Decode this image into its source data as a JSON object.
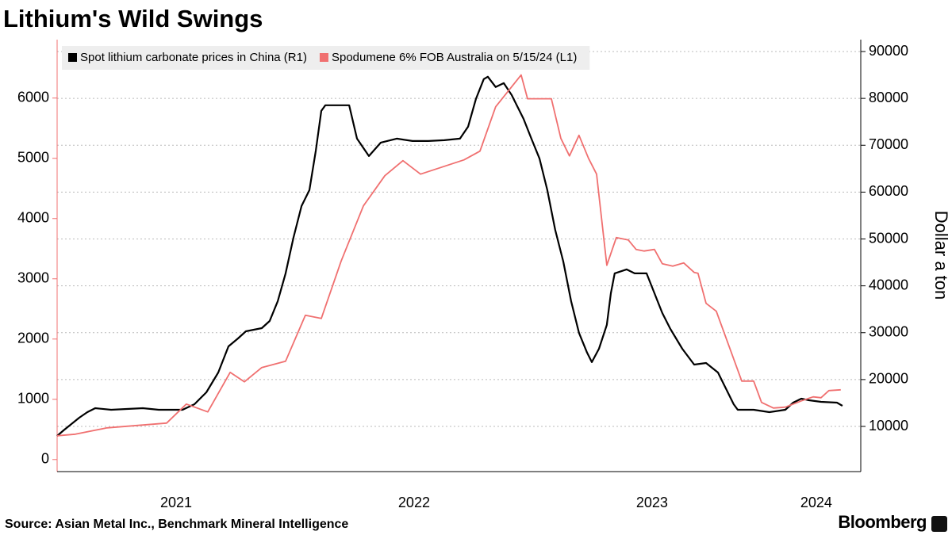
{
  "chart_data": {
    "type": "line",
    "title": "Lithium's Wild Swings",
    "source": "Source: Asian Metal Inc., Benchmark Mineral Intelligence",
    "brand": "Bloomberg",
    "y2_label": "Dollar a ton",
    "xlim": [
      2021,
      2024.377
    ],
    "xticks": [
      {
        "value": 2021.5,
        "label": "2021"
      },
      {
        "value": 2022.5,
        "label": "2022"
      },
      {
        "value": 2023.5,
        "label": "2023"
      },
      {
        "value": 2024.19,
        "label": "2024"
      }
    ],
    "ylim": [
      -200,
      6970
    ],
    "yticks": [
      0,
      1000,
      2000,
      3000,
      4000,
      5000,
      6000
    ],
    "y2lim": [
      360,
      92540
    ],
    "y2ticks": [
      10000,
      20000,
      30000,
      40000,
      50000,
      60000,
      70000,
      80000,
      90000
    ],
    "grid": true,
    "legend": "top-left",
    "series": [
      {
        "name": "Spot lithium carbonate prices in China (R1)",
        "color": "#000000",
        "axis": "y2",
        "x": [
          2021.0,
          2021.027,
          2021.06,
          2021.093,
          2021.127,
          2021.16,
          2021.227,
          2021.293,
          2021.36,
          2021.427,
          2021.527,
          2021.577,
          2021.627,
          2021.677,
          2021.72,
          2021.76,
          2021.793,
          2021.86,
          2021.893,
          2021.927,
          2021.96,
          2021.993,
          2022.027,
          2022.06,
          2022.087,
          2022.11,
          2022.127,
          2022.227,
          2022.26,
          2022.31,
          2022.36,
          2022.427,
          2022.493,
          2022.56,
          2022.627,
          2022.693,
          2022.727,
          2022.76,
          2022.793,
          2022.81,
          2022.843,
          2022.877,
          2022.91,
          2022.96,
          2022.993,
          2023.027,
          2023.06,
          2023.093,
          2023.127,
          2023.16,
          2023.193,
          2023.227,
          2023.247,
          2023.277,
          2023.31,
          2023.327,
          2023.343,
          2023.393,
          2023.427,
          2023.477,
          2023.51,
          2023.543,
          2023.577,
          2023.627,
          2023.677,
          2023.727,
          2023.777,
          2023.81,
          2023.843,
          2023.86,
          2023.927,
          2023.993,
          2024.06,
          2024.093,
          2024.127,
          2024.16,
          2024.21,
          2024.277,
          2024.3
        ],
        "values": [
          7970,
          9150,
          10510,
          11860,
          13050,
          13890,
          13550,
          13720,
          13890,
          13550,
          13550,
          14740,
          17280,
          21510,
          27090,
          28780,
          30300,
          30980,
          32500,
          36730,
          42660,
          50270,
          57040,
          60420,
          68880,
          77340,
          78530,
          78530,
          71420,
          67700,
          70570,
          71420,
          70900,
          70900,
          71080,
          71420,
          73960,
          79880,
          84110,
          84620,
          82420,
          83260,
          80730,
          75650,
          71420,
          67190,
          60420,
          51960,
          45190,
          36730,
          29970,
          25740,
          23710,
          26580,
          31660,
          38430,
          42660,
          43500,
          42660,
          42660,
          38430,
          34200,
          30810,
          26580,
          23200,
          23540,
          21510,
          18120,
          14740,
          13550,
          13550,
          13050,
          13550,
          15080,
          15920,
          15580,
          15250,
          15080,
          14400
        ]
      },
      {
        "name": "Spodumene 6% FOB Australia on 5/15/24 (L1)",
        "color": "#f07070",
        "axis": "y",
        "x": [
          2021.0,
          2021.077,
          2021.21,
          2021.46,
          2021.543,
          2021.633,
          2021.727,
          2021.787,
          2021.86,
          2021.96,
          2022.043,
          2022.11,
          2022.193,
          2022.287,
          2022.377,
          2022.453,
          2022.527,
          2022.71,
          2022.777,
          2022.843,
          2022.95,
          2022.977,
          2023.077,
          2023.117,
          2023.153,
          2023.193,
          2023.233,
          2023.267,
          2023.31,
          2023.35,
          2023.4,
          2023.433,
          2023.467,
          2023.51,
          2023.543,
          2023.587,
          2023.633,
          2023.677,
          2023.693,
          2023.727,
          2023.77,
          2023.877,
          2023.927,
          2023.96,
          2024.01,
          2024.06,
          2024.127,
          2024.177,
          2024.21,
          2024.243,
          2024.293
        ],
        "values": [
          395,
          421,
          526,
          605,
          921,
          790,
          1447,
          1290,
          1527,
          1632,
          2395,
          2342,
          3290,
          4211,
          4711,
          4961,
          4738,
          4974,
          5119,
          5856,
          6383,
          5988,
          5988,
          5330,
          5040,
          5382,
          5001,
          4738,
          3224,
          3685,
          3645,
          3487,
          3461,
          3487,
          3251,
          3211,
          3264,
          3106,
          3093,
          2593,
          2461,
          1303,
          1303,
          948,
          855,
          869,
          974,
          1040,
          1026,
          1145,
          1158
        ]
      }
    ]
  }
}
